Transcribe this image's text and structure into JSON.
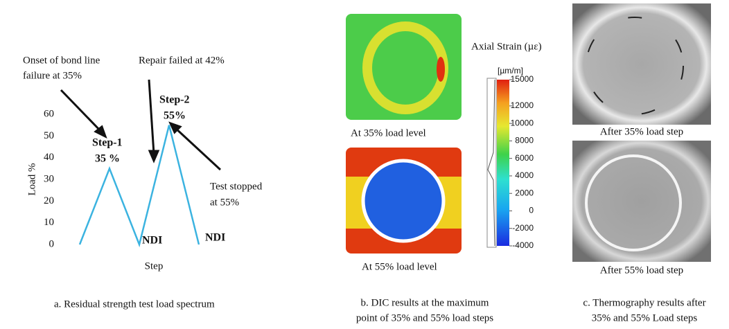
{
  "chart_data": {
    "type": "line",
    "categories": [
      null,
      null,
      null,
      null,
      null
    ],
    "values": [
      0,
      35,
      0,
      55,
      0
    ],
    "color": "#3bb3e0",
    "ylim": [
      0,
      60
    ],
    "yticks": [
      0,
      10,
      20,
      30,
      40,
      50,
      60
    ],
    "y_label": "Load %",
    "x_label": "Step",
    "annotations": {
      "onset": [
        "Onset of bond line",
        "failure at 35%"
      ],
      "repair": "Repair failed at 42%",
      "step1": [
        "Step-1",
        "35 %"
      ],
      "step2": [
        "Step-2",
        "55%"
      ],
      "stopped": [
        "Test stopped",
        "at 55%"
      ],
      "ndi1": "NDI",
      "ndi2": "NDI"
    },
    "caption": "a. Residual strength test load spectrum"
  },
  "panel_b": {
    "top_label": "At 35% load level",
    "bottom_label": "At 55% load level",
    "colorbar": {
      "title": "Axial Strain (µε)",
      "unit": "[µm/m]",
      "lim": [
        -4000,
        15000
      ],
      "ticks": [
        15000,
        12000,
        10000,
        8000,
        6000,
        4000,
        2000,
        0,
        -2000,
        -4000
      ]
    },
    "caption": [
      "b. DIC results at the maximum",
      "point of 35% and 55% load steps"
    ]
  },
  "panel_c": {
    "top_label": "After 35% load step",
    "bottom_label": "After 55% load step",
    "caption": [
      "c. Thermography results after",
      "35% and 55% Load steps"
    ]
  }
}
